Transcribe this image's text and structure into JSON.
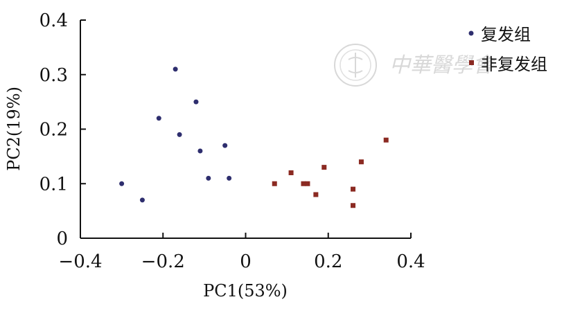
{
  "chart_data": {
    "type": "scatter",
    "xlabel": "PC1(53%)",
    "ylabel": "PC2(19%)",
    "xlim": [
      -0.4,
      0.4
    ],
    "ylim": [
      0,
      0.4
    ],
    "x_ticks": [
      "−0.4",
      "−0.2",
      "0",
      "0.2",
      "0.4"
    ],
    "y_ticks": [
      "0",
      "0.1",
      "0.2",
      "0.3",
      "0.4"
    ],
    "x_tick_values": [
      -0.4,
      -0.2,
      0,
      0.2,
      0.4
    ],
    "y_tick_values": [
      0,
      0.1,
      0.2,
      0.3,
      0.4
    ],
    "grid": false,
    "legend_position": "top-right",
    "series": [
      {
        "name": "复发组",
        "marker": "circle",
        "color": "#2e2e6e",
        "points": [
          {
            "x": -0.3,
            "y": 0.1
          },
          {
            "x": -0.25,
            "y": 0.07
          },
          {
            "x": -0.21,
            "y": 0.22
          },
          {
            "x": -0.17,
            "y": 0.31
          },
          {
            "x": -0.16,
            "y": 0.19
          },
          {
            "x": -0.12,
            "y": 0.25
          },
          {
            "x": -0.11,
            "y": 0.16
          },
          {
            "x": -0.09,
            "y": 0.11
          },
          {
            "x": -0.05,
            "y": 0.17
          },
          {
            "x": -0.04,
            "y": 0.11
          }
        ]
      },
      {
        "name": "非复发组",
        "marker": "square",
        "color": "#8b2a22",
        "points": [
          {
            "x": 0.07,
            "y": 0.1
          },
          {
            "x": 0.11,
            "y": 0.12
          },
          {
            "x": 0.14,
            "y": 0.1
          },
          {
            "x": 0.15,
            "y": 0.1
          },
          {
            "x": 0.17,
            "y": 0.08
          },
          {
            "x": 0.19,
            "y": 0.13
          },
          {
            "x": 0.26,
            "y": 0.09
          },
          {
            "x": 0.26,
            "y": 0.06
          },
          {
            "x": 0.28,
            "y": 0.14
          },
          {
            "x": 0.34,
            "y": 0.18
          }
        ]
      }
    ]
  },
  "watermark": {
    "text": "中華醫學會",
    "emblem_text": "CHINESE MEDICAL ASSOCIATION"
  }
}
